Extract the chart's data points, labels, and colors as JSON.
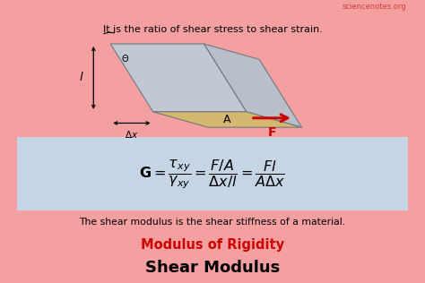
{
  "bg_color": "#f5a0a0",
  "formula_bg": "#c5d5e5",
  "title": "Shear Modulus",
  "subtitle": "Modulus of Rigidity",
  "subtitle_color": "#cc0000",
  "description": "The shear modulus is the shear stiffness of a material.",
  "bottom_text": "It is the ratio of shear stress to shear strain.",
  "watermark": "sciencenotes.org",
  "arrow_color": "#cc0000",
  "block_top_color": "#d4b870",
  "block_side_color": "#b8bfc8",
  "block_front_color": "#c0c8d2",
  "edge_color": "#707880"
}
